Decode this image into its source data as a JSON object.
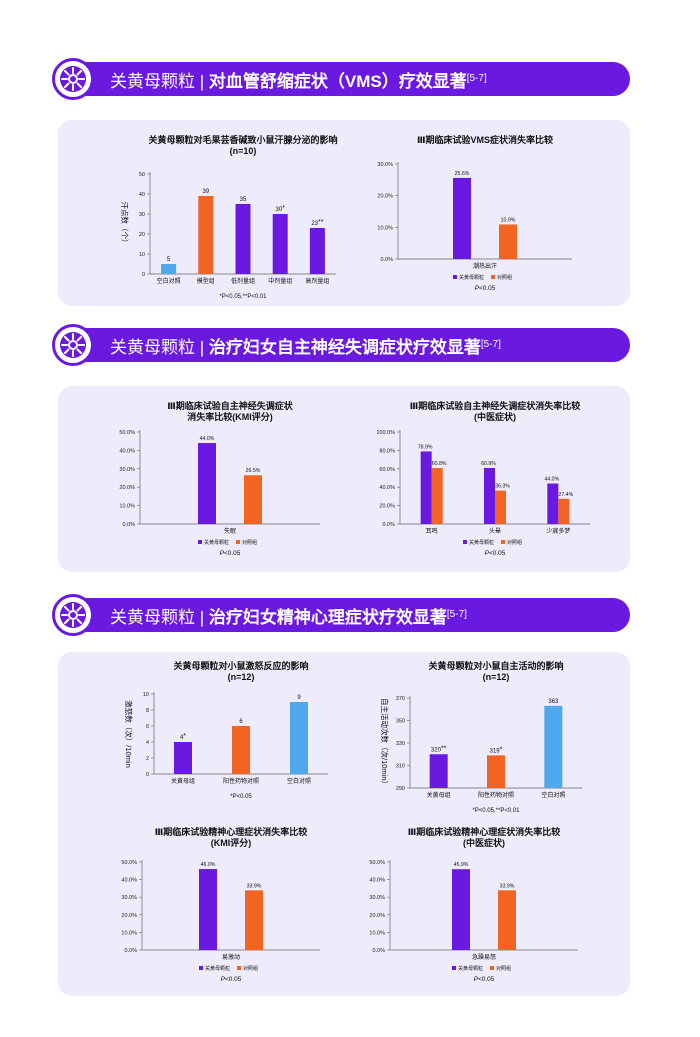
{
  "colors": {
    "purple": "#6a19e0",
    "orange": "#f26422",
    "blue": "#4fa8ec",
    "panel": "#eeebfb"
  },
  "sections": [
    {
      "title_prefix": "关黄母颗粒 | ",
      "title_bold": "对血管舒缩症状（VMS）疗效显著",
      "ref": "[5-7]"
    },
    {
      "title_prefix": "关黄母颗粒 | ",
      "title_bold": "治疗妇女自主神经失调症状疗效显著",
      "ref": "[5-7]"
    },
    {
      "title_prefix": "关黄母颗粒 | ",
      "title_bold": "治疗妇女精神心理症状疗效显著",
      "ref": "[5-7]"
    }
  ],
  "chart_data": [
    {
      "type": "bar",
      "title": "关黄母颗粒对毛果芸香碱致小鼠汗腺分泌的影响",
      "subtitle": "(n=10)",
      "ylabel": "汗点数（个）",
      "ylim": [
        0,
        50
      ],
      "yticks": [
        "0",
        "10",
        "20",
        "30",
        "40",
        "50"
      ],
      "categories": [
        "空白对照",
        "模型组",
        "低剂量组",
        "中剂量组",
        "高剂量组"
      ],
      "values": [
        5,
        39,
        35,
        30,
        23
      ],
      "value_labels": [
        "5",
        "39",
        "35",
        "30",
        "23"
      ],
      "marks": [
        "",
        "",
        "",
        "*",
        "**"
      ],
      "bar_colors": [
        "blue",
        "orange",
        "purple",
        "purple",
        "purple"
      ],
      "note": "*P<0.05,**P<0.01"
    },
    {
      "type": "bar",
      "title": "Ⅲ期临床试验VMS症状消失率比较",
      "ylim": [
        0,
        30
      ],
      "yticks": [
        "0.0%",
        "10.0%",
        "20.0%",
        "30.0%"
      ],
      "categories": [
        "潮热出汗"
      ],
      "series": [
        {
          "name": "关黄母颗粒",
          "values": [
            25.6
          ],
          "labels": [
            "25.6%"
          ],
          "color": "purple"
        },
        {
          "name": "对照组",
          "values": [
            10.9
          ],
          "labels": [
            "10.9%"
          ],
          "color": "orange"
        }
      ],
      "note_italic": "P",
      "note": "<0.05"
    },
    {
      "type": "bar",
      "title": "Ⅲ期临床试验自主神经失调症状",
      "subtitle": "消失率比较(KMI评分)",
      "ylim": [
        0,
        50
      ],
      "yticks": [
        "0.0%",
        "10.0%",
        "20.0%",
        "30.0%",
        "40.0%",
        "50.0%"
      ],
      "categories": [
        "失眠"
      ],
      "series": [
        {
          "name": "关黄母颗粒",
          "values": [
            44.0
          ],
          "labels": [
            "44.0%"
          ],
          "color": "purple"
        },
        {
          "name": "对照组",
          "values": [
            26.5
          ],
          "labels": [
            "26.5%"
          ],
          "color": "orange"
        }
      ],
      "note_italic": "P",
      "note": "<0.05"
    },
    {
      "type": "bar",
      "title": "Ⅲ期临床试验自主神经失调症状消失率比较",
      "subtitle": "(中医症状)",
      "ylim": [
        0,
        100
      ],
      "yticks": [
        "0.0%",
        "20.0%",
        "40.0%",
        "60.0%",
        "80.0%",
        "100.0%"
      ],
      "categories": [
        "耳鸣",
        "头晕",
        "少寐多梦"
      ],
      "series": [
        {
          "name": "关黄母颗粒",
          "values": [
            78.9,
            60.9,
            44.0
          ],
          "labels": [
            "78.9%",
            "60.9%",
            "44.0%"
          ],
          "color": "purple"
        },
        {
          "name": "对照组",
          "values": [
            60.8,
            36.3,
            27.4
          ],
          "labels": [
            "60.8%",
            "36.3%",
            "27.4%"
          ],
          "color": "orange"
        }
      ],
      "note_italic": "P",
      "note": "<0.05"
    },
    {
      "type": "bar",
      "title": "关黄母颗粒对小鼠激怒反应的影响",
      "subtitle": "(n=12)",
      "ylabel": "激怒数（次）/10min",
      "ylim": [
        0,
        10
      ],
      "yticks": [
        "0",
        "2",
        "4",
        "6",
        "8",
        "10"
      ],
      "categories": [
        "关黄母组",
        "阳性药物对照",
        "空白对照"
      ],
      "values": [
        4,
        6,
        9
      ],
      "value_labels": [
        "4",
        "6",
        "9"
      ],
      "marks": [
        "*",
        "",
        ""
      ],
      "bar_colors": [
        "purple",
        "orange",
        "blue"
      ],
      "note": "*P<0.05"
    },
    {
      "type": "bar",
      "title": "关黄母颗粒对小鼠自主活动的影响",
      "subtitle": "(n=12)",
      "ylabel": "自主活动次数（次/10min）",
      "ylim": [
        290,
        370
      ],
      "yticks": [
        "290",
        "310",
        "330",
        "350",
        "370"
      ],
      "categories": [
        "关黄母组",
        "阳性药物对照",
        "空白对照"
      ],
      "values": [
        320,
        319,
        363
      ],
      "value_labels": [
        "320",
        "319",
        "363"
      ],
      "marks": [
        "**",
        "*",
        ""
      ],
      "bar_colors": [
        "purple",
        "orange",
        "blue"
      ],
      "note": "*P<0.05,**P<0.01"
    },
    {
      "type": "bar",
      "title": "Ⅲ期临床试验精神心理症状消失率比较",
      "subtitle": "(KMI评分)",
      "ylim": [
        0,
        50
      ],
      "yticks": [
        "0.0%",
        "10.0%",
        "20.0%",
        "30.0%",
        "40.0%",
        "50.0%"
      ],
      "categories": [
        "易激动"
      ],
      "series": [
        {
          "name": "关黄母颗粒",
          "values": [
            46.0
          ],
          "labels": [
            "46.0%"
          ],
          "color": "purple"
        },
        {
          "name": "对照组",
          "values": [
            33.9
          ],
          "labels": [
            "33.9%"
          ],
          "color": "orange"
        }
      ],
      "note_italic": "P",
      "note": "<0.05"
    },
    {
      "type": "bar",
      "title": "Ⅲ期临床试验精神心理症状消失率比较",
      "subtitle": "(中医症状)",
      "ylim": [
        0,
        50
      ],
      "yticks": [
        "0.0%",
        "10.0%",
        "20.0%",
        "30.0%",
        "40.0%",
        "50.0%"
      ],
      "categories": [
        "急躁易怒"
      ],
      "series": [
        {
          "name": "关黄母颗粒",
          "values": [
            45.9
          ],
          "labels": [
            "45.9%"
          ],
          "color": "purple"
        },
        {
          "name": "对照组",
          "values": [
            33.9
          ],
          "labels": [
            "33.9%"
          ],
          "color": "orange"
        }
      ],
      "note_italic": "P",
      "note": "<0.05"
    }
  ]
}
